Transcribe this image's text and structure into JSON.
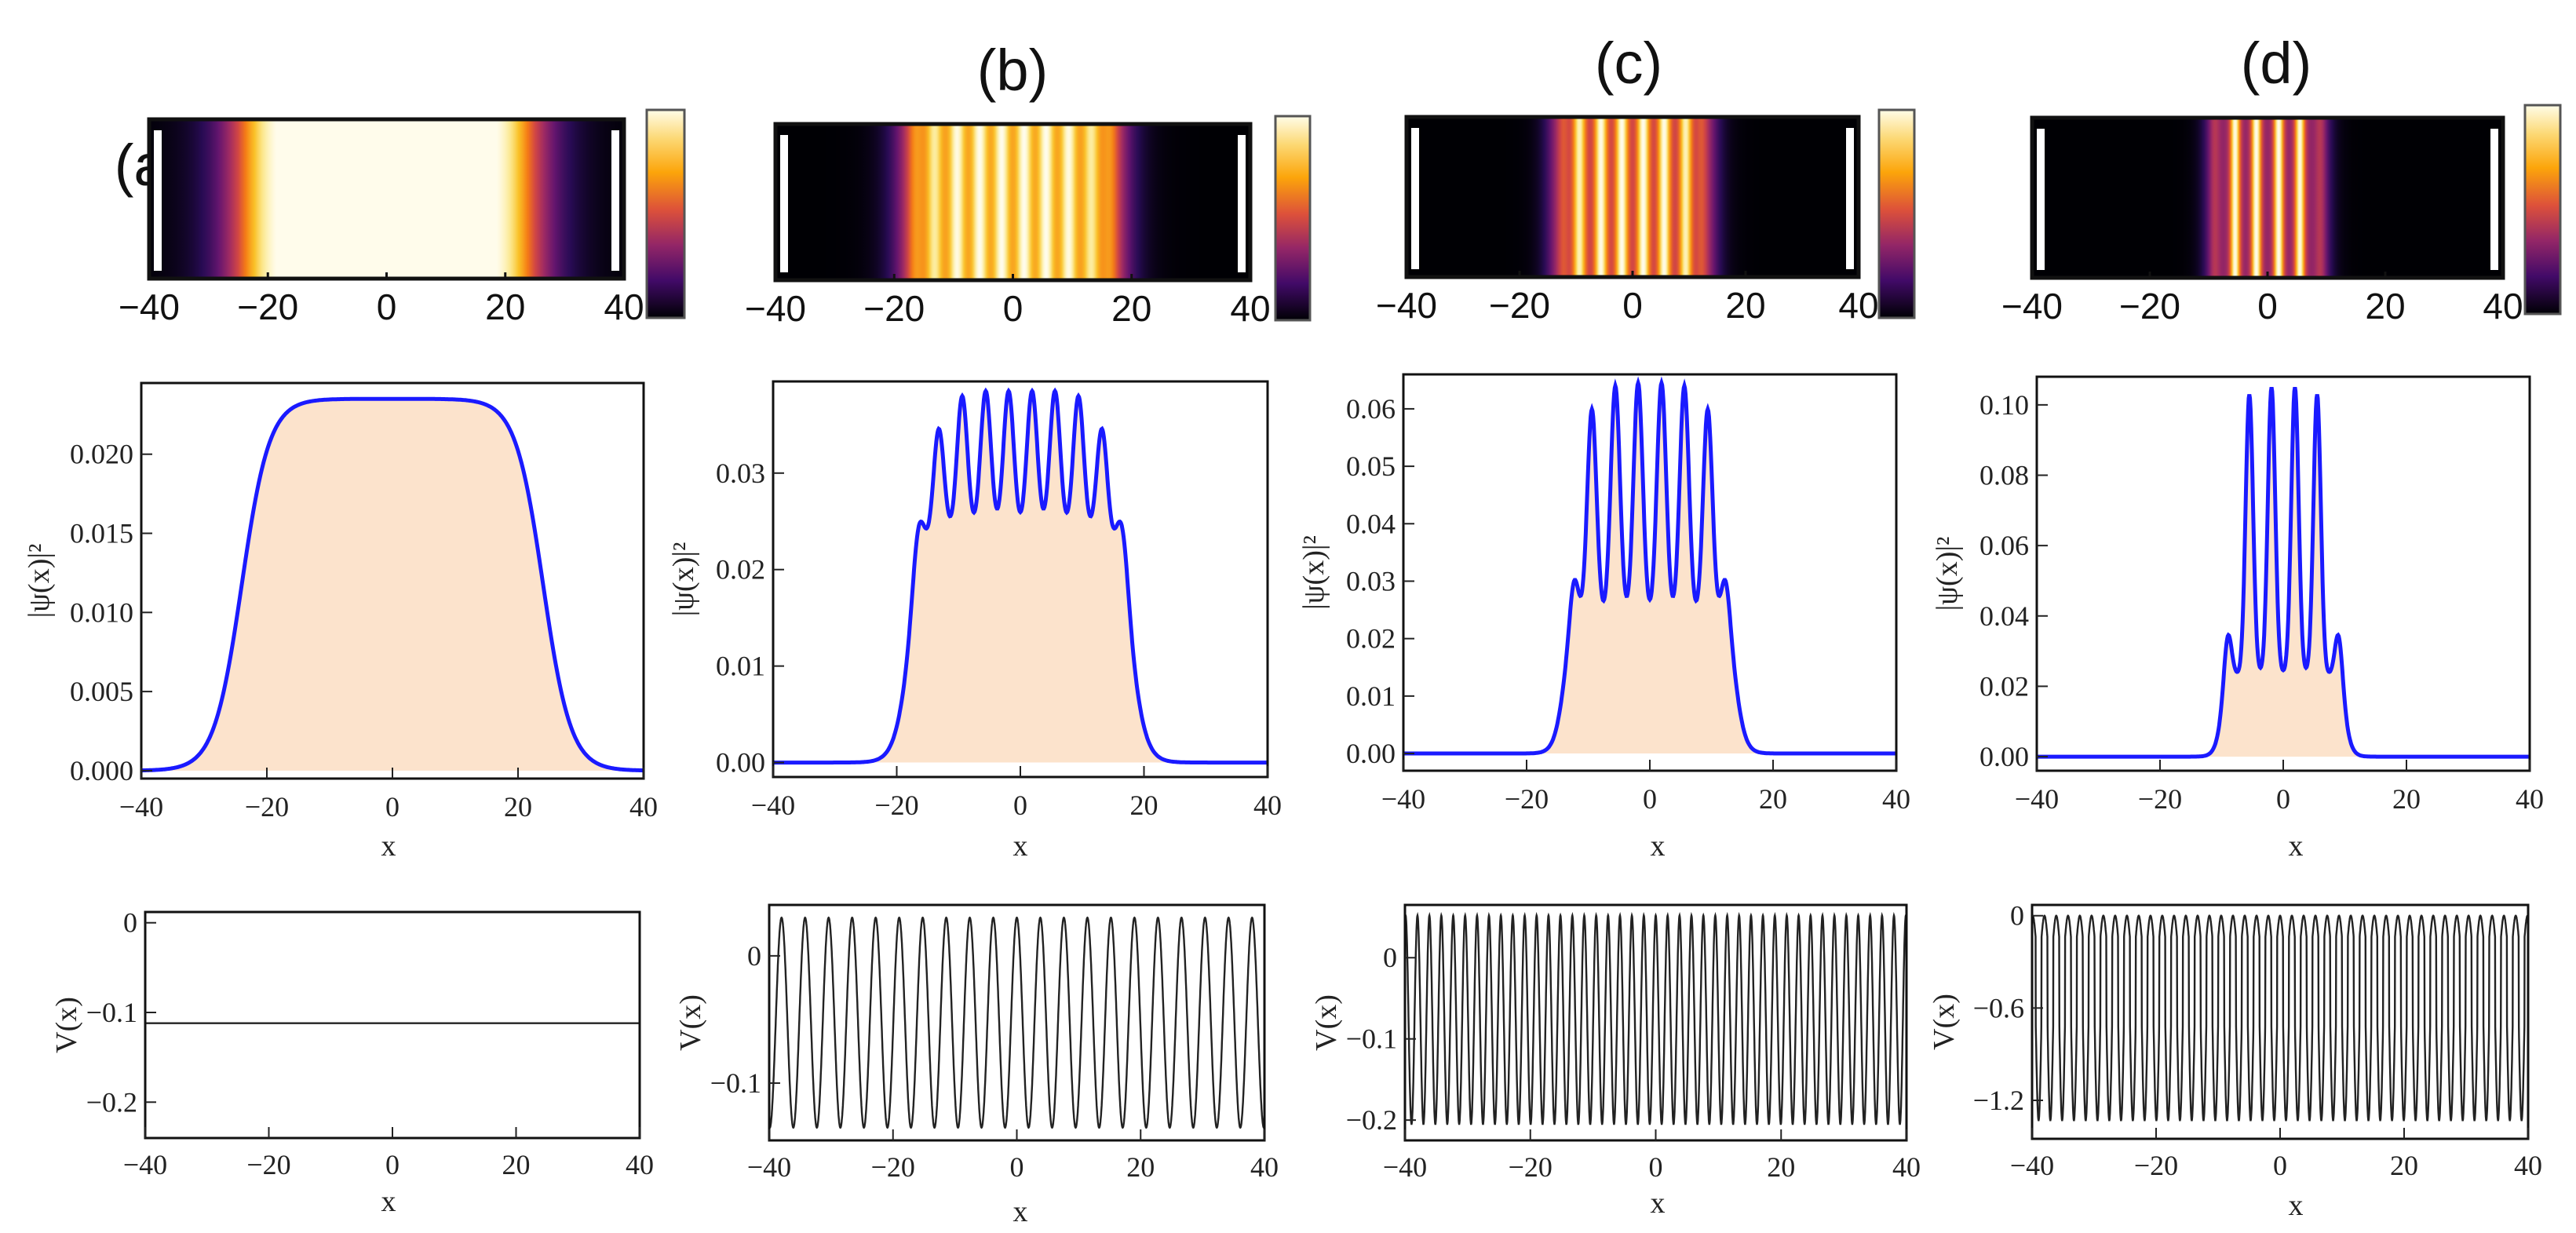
{
  "chart_data": [
    {
      "panel": "(a)",
      "heatmap": {
        "type": "heatmap",
        "x_range": [
          -40,
          40
        ],
        "x_ticks": [
          -40,
          -20,
          0,
          20,
          40
        ],
        "tick_labels": [
          "−40",
          "−20",
          "0",
          "20",
          "40"
        ]
      },
      "density": {
        "type": "area",
        "series": [
          {
            "name": "|ψ(x)|²",
            "color": "#1a1aff",
            "fill": "#fce3cc"
          }
        ],
        "plateau_value": 0.0235,
        "edge_positions": [
          -24,
          24
        ],
        "edge_width": 2.2,
        "bumps": [],
        "ripple": null,
        "xlabel": "x",
        "ylabel": "|ψ(x)|²",
        "xlim": [
          -40,
          40
        ],
        "ylim": [
          -0.0005,
          0.0245
        ],
        "x_ticks": [
          -40,
          -20,
          0,
          20,
          40
        ],
        "x_tick_labels": [
          "−40",
          "−20",
          "0",
          "20",
          "40"
        ],
        "y_ticks": [
          0,
          0.005,
          0.01,
          0.015,
          0.02
        ],
        "y_tick_labels": [
          "0.000",
          "0.005",
          "0.010",
          "0.015",
          "0.020"
        ]
      },
      "potential": {
        "type": "line",
        "constant": -0.112,
        "xlabel": "x",
        "ylabel": "V(x)",
        "xlim": [
          -40,
          40
        ],
        "ylim": [
          -0.24,
          0.012
        ],
        "x_ticks": [
          -40,
          -20,
          0,
          20,
          40
        ],
        "x_tick_labels": [
          "−40",
          "−20",
          "0",
          "20",
          "40"
        ],
        "y_ticks": [
          0,
          -0.1,
          -0.2
        ],
        "y_tick_labels": [
          "0",
          "−0.1",
          "−0.2"
        ]
      }
    },
    {
      "panel": "(b)",
      "heatmap": {
        "type": "heatmap",
        "x_range": [
          -40,
          40
        ],
        "x_ticks": [
          -40,
          -20,
          0,
          20,
          40
        ],
        "tick_labels": [
          "−40",
          "−20",
          "0",
          "20",
          "40"
        ]
      },
      "density": {
        "type": "area",
        "series": [
          {
            "name": "|ψ(x)|²",
            "color": "#1a1aff",
            "fill": "#fce3cc"
          }
        ],
        "plateau_value": 0.0235,
        "edge_positions": [
          -18,
          18
        ],
        "edge_width": 1.2,
        "bumps": [
          {
            "x": -16.5,
            "h": 0.006,
            "w": 0.9
          },
          {
            "x": 16.5,
            "h": 0.006,
            "w": 0.9
          }
        ],
        "ripple": {
          "peaks": [
            -13.2,
            -9.4,
            -5.6,
            -1.9,
            1.9,
            5.6,
            9.4,
            13.2
          ],
          "heights": [
            0.035,
            0.038,
            0.0385,
            0.0385,
            0.0385,
            0.0385,
            0.038,
            0.035
          ],
          "width": 0.85
        },
        "xlabel": "x",
        "ylabel": "|ψ(x)|²",
        "xlim": [
          -40,
          40
        ],
        "ylim": [
          -0.0015,
          0.0395
        ],
        "x_ticks": [
          -40,
          -20,
          0,
          20,
          40
        ],
        "x_tick_labels": [
          "−40",
          "−20",
          "0",
          "20",
          "40"
        ],
        "y_ticks": [
          0,
          0.01,
          0.02,
          0.03
        ],
        "y_tick_labels": [
          "0.00",
          "0.01",
          "0.02",
          "0.03"
        ]
      },
      "potential": {
        "type": "line",
        "amp_top": 0.03,
        "amp_bottom": -0.135,
        "period": 3.8,
        "xlabel": "x",
        "ylabel": "V(x)",
        "xlim": [
          -40,
          40
        ],
        "ylim": [
          -0.145,
          0.04
        ],
        "x_ticks": [
          -40,
          -20,
          0,
          20,
          40
        ],
        "x_tick_labels": [
          "−40",
          "−20",
          "0",
          "20",
          "40"
        ],
        "y_ticks": [
          0,
          -0.1
        ],
        "y_tick_labels": [
          "0",
          "−0.1"
        ]
      }
    },
    {
      "panel": "(c)",
      "heatmap": {
        "type": "heatmap",
        "x_range": [
          -40,
          40
        ],
        "x_ticks": [
          -40,
          -20,
          0,
          20,
          40
        ],
        "tick_labels": [
          "−40",
          "−20",
          "0",
          "20",
          "40"
        ]
      },
      "density": {
        "type": "area",
        "series": [
          {
            "name": "|ψ(x)|²",
            "color": "#1a1aff",
            "fill": "#fce3cc"
          }
        ],
        "plateau_value": 0.0235,
        "edge_positions": [
          -14,
          14
        ],
        "edge_width": 0.8,
        "bumps": [
          {
            "x": -12.3,
            "h": 0.009,
            "w": 0.7
          },
          {
            "x": 12.3,
            "h": 0.009,
            "w": 0.7
          }
        ],
        "ripple": {
          "peaks": [
            -9.4,
            -5.6,
            -1.9,
            1.9,
            5.6,
            9.4
          ],
          "heights": [
            0.06,
            0.064,
            0.0645,
            0.0645,
            0.064,
            0.06
          ],
          "width": 0.75
        },
        "xlabel": "x",
        "ylabel": "|ψ(x)|²",
        "xlim": [
          -40,
          40
        ],
        "ylim": [
          -0.003,
          0.066
        ],
        "x_ticks": [
          -40,
          -20,
          0,
          20,
          40
        ],
        "x_tick_labels": [
          "−40",
          "−20",
          "0",
          "20",
          "40"
        ],
        "y_ticks": [
          0,
          0.01,
          0.02,
          0.03,
          0.04,
          0.05,
          0.06
        ],
        "y_tick_labels": [
          "0.00",
          "0.01",
          "0.02",
          "0.03",
          "0.04",
          "0.05",
          "0.06"
        ]
      },
      "potential": {
        "type": "line",
        "amp_top": 0.052,
        "amp_bottom": -0.205,
        "period": 1.9,
        "xlabel": "x",
        "ylabel": "V(x)",
        "xlim": [
          -40,
          40
        ],
        "ylim": [
          -0.225,
          0.065
        ],
        "x_ticks": [
          -40,
          -20,
          0,
          20,
          40
        ],
        "x_tick_labels": [
          "−40",
          "−20",
          "0",
          "20",
          "40"
        ],
        "y_ticks": [
          0,
          -0.1,
          -0.2
        ],
        "y_tick_labels": [
          "0",
          "−0.1",
          "−0.2"
        ]
      }
    },
    {
      "panel": "(d)",
      "heatmap": {
        "type": "heatmap",
        "x_range": [
          -40,
          40
        ],
        "x_ticks": [
          -40,
          -20,
          0,
          20,
          40
        ],
        "tick_labels": [
          "−40",
          "−20",
          "0",
          "20",
          "40"
        ]
      },
      "density": {
        "type": "area",
        "series": [
          {
            "name": "|ψ(x)|²",
            "color": "#1a1aff",
            "fill": "#fce3cc"
          }
        ],
        "plateau_value": 0.0235,
        "edge_positions": [
          -10,
          10
        ],
        "edge_width": 0.6,
        "bumps": [],
        "ripple": {
          "peaks": [
            -9.0,
            -5.5,
            -1.9,
            1.9,
            5.5,
            9.0
          ],
          "heights": [
            0.038,
            0.103,
            0.105,
            0.105,
            0.103,
            0.038
          ],
          "width": 0.6
        },
        "xlabel": "x",
        "ylabel": "|ψ(x)|²",
        "xlim": [
          -40,
          40
        ],
        "ylim": [
          -0.004,
          0.108
        ],
        "x_ticks": [
          -40,
          -20,
          0,
          20,
          40
        ],
        "x_tick_labels": [
          "−40",
          "−20",
          "0",
          "20",
          "40"
        ],
        "y_ticks": [
          0,
          0.02,
          0.04,
          0.06,
          0.08,
          0.1
        ],
        "y_tick_labels": [
          "0.00",
          "0.02",
          "0.04",
          "0.06",
          "0.08",
          "0.10"
        ]
      },
      "potential": {
        "type": "line",
        "amp_top": 0.0,
        "amp_bottom": -1.33,
        "mid_value": -0.28,
        "period": 1.9,
        "xlabel": "x",
        "ylabel": "V(x)",
        "xlim": [
          -40,
          40
        ],
        "ylim": [
          -1.45,
          0.07
        ],
        "x_ticks": [
          -40,
          -20,
          0,
          20,
          40
        ],
        "x_tick_labels": [
          "−40",
          "−20",
          "0",
          "20",
          "40"
        ],
        "y_ticks": [
          0,
          -0.6,
          -1.2
        ],
        "y_tick_labels": [
          "0",
          "−0.6",
          "−1.2"
        ]
      }
    }
  ]
}
